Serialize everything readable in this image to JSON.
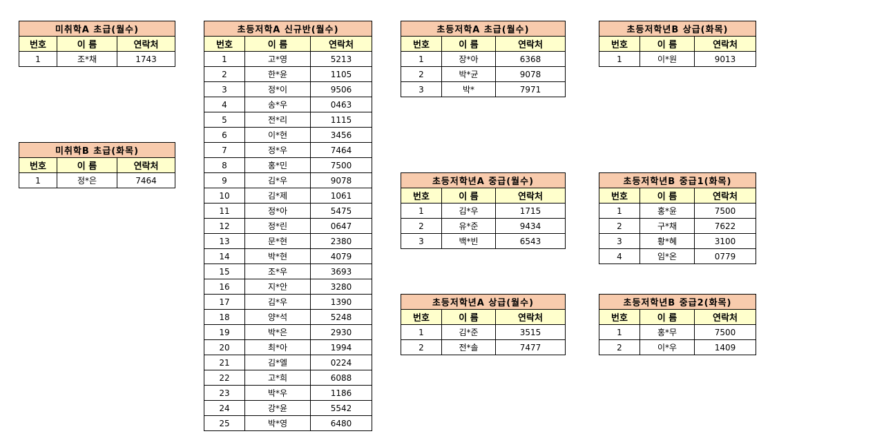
{
  "columns": [
    "번호",
    "이 름",
    "연락처"
  ],
  "colors": {
    "title_bg": "#f8cbad",
    "header_bg": "#ffffcc",
    "border": "#000000"
  },
  "tables": [
    {
      "title": "미취학A 초급(월수)",
      "rows": [
        [
          "1",
          "조*채",
          "1743"
        ]
      ]
    },
    {
      "title": "미취학B 초급(화목)",
      "rows": [
        [
          "1",
          "정*은",
          "7464"
        ]
      ]
    },
    {
      "title": "초등저학A 신규반(월수)",
      "rows": [
        [
          "1",
          "고*영",
          "5213"
        ],
        [
          "2",
          "한*윤",
          "1105"
        ],
        [
          "3",
          "정*이",
          "9506"
        ],
        [
          "4",
          "송*우",
          "0463"
        ],
        [
          "5",
          "전*리",
          "1115"
        ],
        [
          "6",
          "이*현",
          "3456"
        ],
        [
          "7",
          "정*우",
          "7464"
        ],
        [
          "8",
          "홍*민",
          "7500"
        ],
        [
          "9",
          "김*우",
          "9078"
        ],
        [
          "10",
          "김*제",
          "1061"
        ],
        [
          "11",
          "정*아",
          "5475"
        ],
        [
          "12",
          "정*린",
          "0647"
        ],
        [
          "13",
          "문*현",
          "2380"
        ],
        [
          "14",
          "박*현",
          "4079"
        ],
        [
          "15",
          "조*우",
          "3693"
        ],
        [
          "16",
          "지*안",
          "3280"
        ],
        [
          "17",
          "김*우",
          "1390"
        ],
        [
          "18",
          "양*석",
          "5248"
        ],
        [
          "19",
          "박*은",
          "2930"
        ],
        [
          "20",
          "최*아",
          "1994"
        ],
        [
          "21",
          "김*엘",
          "0224"
        ],
        [
          "22",
          "고*희",
          "6088"
        ],
        [
          "23",
          "박*우",
          "1186"
        ],
        [
          "24",
          "강*윤",
          "5542"
        ],
        [
          "25",
          "박*영",
          "6480"
        ]
      ]
    },
    {
      "title": "초등저학A 초급(월수)",
      "rows": [
        [
          "1",
          "장*아",
          "6368"
        ],
        [
          "2",
          "박*균",
          "9078"
        ],
        [
          "3",
          "박*",
          "7971"
        ]
      ]
    },
    {
      "title": "초등저학년A 중급(월수)",
      "rows": [
        [
          "1",
          "김*우",
          "1715"
        ],
        [
          "2",
          "유*준",
          "9434"
        ],
        [
          "3",
          "백*빈",
          "6543"
        ]
      ]
    },
    {
      "title": "초등저학년A 상급(월수)",
      "rows": [
        [
          "1",
          "김*준",
          "3515"
        ],
        [
          "2",
          "전*솔",
          "7477"
        ]
      ]
    },
    {
      "title": "초등저학년B 상급(화목)",
      "rows": [
        [
          "1",
          "이*원",
          "9013"
        ]
      ]
    },
    {
      "title": "초등저학년B 중급1(화목)",
      "rows": [
        [
          "1",
          "홍*윤",
          "7500"
        ],
        [
          "2",
          "구*채",
          "7622"
        ],
        [
          "3",
          "황*혜",
          "3100"
        ],
        [
          "4",
          "임*온",
          "0779"
        ]
      ]
    },
    {
      "title": "초등저학년B 중급2(화목)",
      "rows": [
        [
          "1",
          "홍*무",
          "7500"
        ],
        [
          "2",
          "이*우",
          "1409"
        ]
      ]
    }
  ]
}
